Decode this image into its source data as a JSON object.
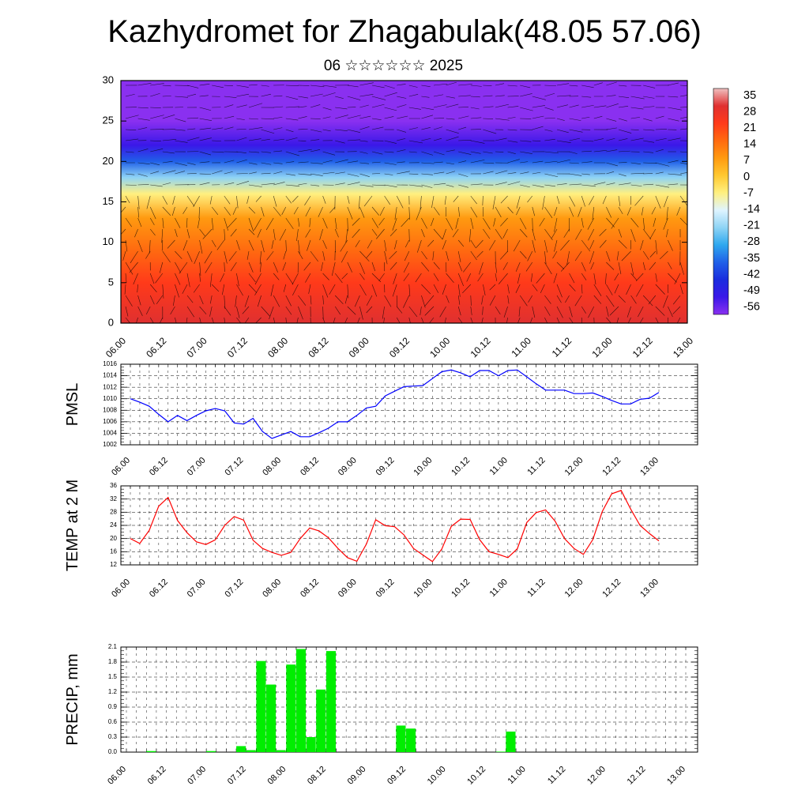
{
  "title": "Kazhydromet for Zhagabulak(48.05 57.06)",
  "subtitle": "06 ☆☆☆☆☆☆ 2025",
  "time_ticks": [
    "06.00",
    "06.12",
    "07.00",
    "07.12",
    "08.00",
    "08.12",
    "09.00",
    "09.12",
    "10.00",
    "10.12",
    "11.00",
    "11.12",
    "12.00",
    "12.12",
    "13.00"
  ],
  "chart_data": [
    {
      "type": "heatmap",
      "title": "",
      "ylabel": "",
      "ylim": [
        0,
        30
      ],
      "yticks": [
        "0",
        "5",
        "10",
        "15",
        "20",
        "25",
        "30"
      ],
      "colorbar_labels": [
        "35",
        "28",
        "21",
        "14",
        "7",
        "0",
        "-7",
        "-14",
        "-21",
        "-28",
        "-35",
        "-42",
        "-49",
        "-56"
      ],
      "colorbar_colors": [
        "#f0c0c0",
        "#e03030",
        "#ff3a1a",
        "#ff6a10",
        "#ff9a10",
        "#ffc830",
        "#fff080",
        "#dff4ff",
        "#8fd4f5",
        "#2fa8ef",
        "#2060e8",
        "#1a2cde",
        "#3a18e8",
        "#8a30f0"
      ],
      "vertical_profile_celsius": [
        {
          "height": 0,
          "temp": 26
        },
        {
          "height": 5,
          "temp": 24
        },
        {
          "height": 9,
          "temp": 17
        },
        {
          "height": 13,
          "temp": 6
        },
        {
          "height": 16,
          "temp": -6
        },
        {
          "height": 18,
          "temp": -20
        },
        {
          "height": 20,
          "temp": -38
        },
        {
          "height": 22,
          "temp": -50
        },
        {
          "height": 25,
          "temp": -56
        },
        {
          "height": 30,
          "temp": -60
        }
      ]
    },
    {
      "type": "line",
      "ylabel": "PMSL",
      "ylim": [
        1002,
        1016
      ],
      "yticks": [
        "1002",
        "1004",
        "1006",
        "1008",
        "1010",
        "1012",
        "1014",
        "1016"
      ],
      "color": "#0000ff",
      "series": [
        {
          "values": [
            1010,
            1009.4,
            1008.7,
            1007.3,
            1006,
            1007.1,
            1006.2,
            1007.1,
            1007.9,
            1008.3,
            1007.9,
            1005.8,
            1005.6,
            1006.6,
            1004.3,
            1003.1,
            1003.7,
            1004.3,
            1003.4,
            1003.4,
            1004.1,
            1004.9,
            1006,
            1006,
            1007.1,
            1008.4,
            1008.7,
            1010.5,
            1011.3,
            1012.1,
            1012.2,
            1012.3,
            1013.5,
            1014.7,
            1015,
            1014.5,
            1013.8,
            1014.9,
            1014.9,
            1014,
            1014.9,
            1015,
            1013.8,
            1012.6,
            1011.5,
            1011.5,
            1011.5,
            1010.9,
            1010.9,
            1011,
            1010.4,
            1009.7,
            1009.1,
            1009.1,
            1009.9,
            1010.1,
            1011.1
          ]
        }
      ]
    },
    {
      "type": "line",
      "ylabel": "TEMP at 2 M",
      "ylim": [
        12,
        36
      ],
      "yticks": [
        "12",
        "16",
        "20",
        "24",
        "28",
        "32",
        "36"
      ],
      "color": "#ff0000",
      "series": [
        {
          "values": [
            20,
            18.5,
            22.5,
            29.8,
            32.5,
            25.5,
            21.8,
            19,
            18.2,
            19.6,
            24,
            26.7,
            25.6,
            19.5,
            17,
            15.8,
            14.9,
            15.8,
            20,
            23.2,
            22.3,
            20.2,
            17,
            14.2,
            13.1,
            18.3,
            25.7,
            23.9,
            23.6,
            21.1,
            17,
            15,
            13,
            16.8,
            23.7,
            25.9,
            25.8,
            19.7,
            16,
            15.2,
            14.2,
            16.9,
            24.9,
            27.9,
            28.7,
            25.3,
            20,
            17,
            15.2,
            19.7,
            28.2,
            33.6,
            34.6,
            29,
            24,
            21.5,
            19.3
          ]
        }
      ]
    },
    {
      "type": "bar",
      "ylabel": "PRECIP, mm",
      "ylim": [
        0,
        2.1
      ],
      "yticks": [
        "0.0",
        "0.3",
        "0.6",
        "0.9",
        "1.2",
        "1.5",
        "1.8",
        "2.1"
      ],
      "color": "#00ee00",
      "values": [
        0,
        0,
        0.02,
        0,
        0,
        0,
        0,
        0,
        0.02,
        0,
        0,
        0.12,
        0.04,
        1.82,
        1.35,
        0.04,
        1.75,
        2.06,
        0.3,
        1.25,
        2.02,
        0,
        0,
        0,
        0,
        0,
        0,
        0.53,
        0.47,
        0,
        0,
        0,
        0,
        0,
        0,
        0,
        0,
        0.01,
        0.41,
        0,
        0,
        0,
        0,
        0,
        0,
        0,
        0,
        0,
        0,
        0,
        0,
        0,
        0,
        0,
        0,
        0,
        0
      ]
    }
  ]
}
